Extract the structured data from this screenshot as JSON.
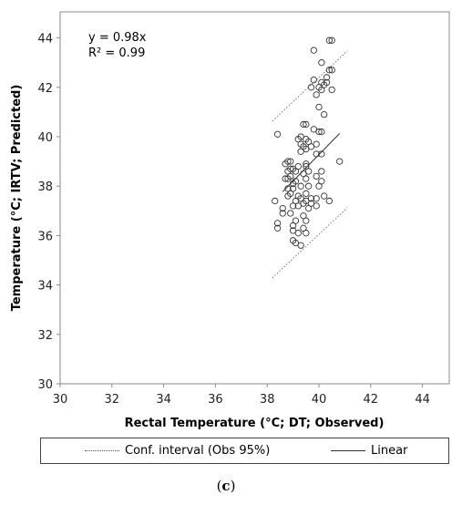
{
  "chart_data": {
    "type": "scatter",
    "xlabel": "Rectal Temperature (°C; DT; Observed)",
    "ylabel": "Temperature (°C; IRTV; Predicted)",
    "xlim": [
      30,
      45
    ],
    "ylim": [
      30,
      45
    ],
    "xticks": [
      "30",
      "32",
      "34",
      "36",
      "38",
      "40",
      "42",
      "44"
    ],
    "yticks": [
      "30",
      "32",
      "34",
      "36",
      "38",
      "40",
      "42",
      "44"
    ],
    "grid": false,
    "annotations": [
      "y = 0.98x",
      "R² = 0.99"
    ],
    "legend": {
      "placement": "bottom",
      "entries": [
        "Conf. interval (Obs 95%)",
        "Linear"
      ]
    },
    "points": [
      [
        38.4,
        40.1
      ],
      [
        38.3,
        37.4
      ],
      [
        38.4,
        36.5
      ],
      [
        38.4,
        36.3
      ],
      [
        38.6,
        36.9
      ],
      [
        38.6,
        37.1
      ],
      [
        38.7,
        38.3
      ],
      [
        38.7,
        38.9
      ],
      [
        38.8,
        37.9
      ],
      [
        38.8,
        38.6
      ],
      [
        38.8,
        38.3
      ],
      [
        38.8,
        39.0
      ],
      [
        38.8,
        37.6
      ],
      [
        38.9,
        37.7
      ],
      [
        38.9,
        38.4
      ],
      [
        38.9,
        38.7
      ],
      [
        38.9,
        39.0
      ],
      [
        38.9,
        36.9
      ],
      [
        39.0,
        37.2
      ],
      [
        39.0,
        37.9
      ],
      [
        39.0,
        38.7
      ],
      [
        39.0,
        38.1
      ],
      [
        39.0,
        36.4
      ],
      [
        39.0,
        36.2
      ],
      [
        39.0,
        35.8
      ],
      [
        39.1,
        37.4
      ],
      [
        39.1,
        38.6
      ],
      [
        39.1,
        36.6
      ],
      [
        39.1,
        35.7
      ],
      [
        39.1,
        38.2
      ],
      [
        39.2,
        37.6
      ],
      [
        39.2,
        37.2
      ],
      [
        39.2,
        38.8
      ],
      [
        39.2,
        39.9
      ],
      [
        39.2,
        36.1
      ],
      [
        39.3,
        35.6
      ],
      [
        39.3,
        37.5
      ],
      [
        39.3,
        38.0
      ],
      [
        39.3,
        39.7
      ],
      [
        39.3,
        40.0
      ],
      [
        39.3,
        39.4
      ],
      [
        39.4,
        38.5
      ],
      [
        39.4,
        37.3
      ],
      [
        39.4,
        36.8
      ],
      [
        39.4,
        36.3
      ],
      [
        39.4,
        39.6
      ],
      [
        39.4,
        40.5
      ],
      [
        39.5,
        40.5
      ],
      [
        39.5,
        39.9
      ],
      [
        39.5,
        38.9
      ],
      [
        39.5,
        38.8
      ],
      [
        39.5,
        38.3
      ],
      [
        39.5,
        37.7
      ],
      [
        39.5,
        37.4
      ],
      [
        39.5,
        36.1
      ],
      [
        39.5,
        36.6
      ],
      [
        39.5,
        39.5
      ],
      [
        39.6,
        37.1
      ],
      [
        39.6,
        38.0
      ],
      [
        39.6,
        38.6
      ],
      [
        39.6,
        39.8
      ],
      [
        39.7,
        37.5
      ],
      [
        39.7,
        37.3
      ],
      [
        39.7,
        39.6
      ],
      [
        39.7,
        42.0
      ],
      [
        39.8,
        43.5
      ],
      [
        39.8,
        42.3
      ],
      [
        39.8,
        40.3
      ],
      [
        39.9,
        39.7
      ],
      [
        39.9,
        39.3
      ],
      [
        39.9,
        38.4
      ],
      [
        39.9,
        37.5
      ],
      [
        39.9,
        37.2
      ],
      [
        39.9,
        41.7
      ],
      [
        40.0,
        42.0
      ],
      [
        40.0,
        41.2
      ],
      [
        40.0,
        40.2
      ],
      [
        40.0,
        38.0
      ],
      [
        40.1,
        42.2
      ],
      [
        40.1,
        43.0
      ],
      [
        40.1,
        41.9
      ],
      [
        40.1,
        38.6
      ],
      [
        40.1,
        38.2
      ],
      [
        40.1,
        39.3
      ],
      [
        40.1,
        40.2
      ],
      [
        40.2,
        40.9
      ],
      [
        40.2,
        37.6
      ],
      [
        40.2,
        42.1
      ],
      [
        40.3,
        42.2
      ],
      [
        40.3,
        42.4
      ],
      [
        40.4,
        43.9
      ],
      [
        40.4,
        42.7
      ],
      [
        40.4,
        37.4
      ],
      [
        40.5,
        43.9
      ],
      [
        40.5,
        42.7
      ],
      [
        40.5,
        41.9
      ],
      [
        40.8,
        39.0
      ]
    ]
  },
  "legend": {
    "conf_label": "Conf. interval (Obs 95%)",
    "linear_label": "Linear"
  },
  "caption": {
    "letter": "c"
  }
}
